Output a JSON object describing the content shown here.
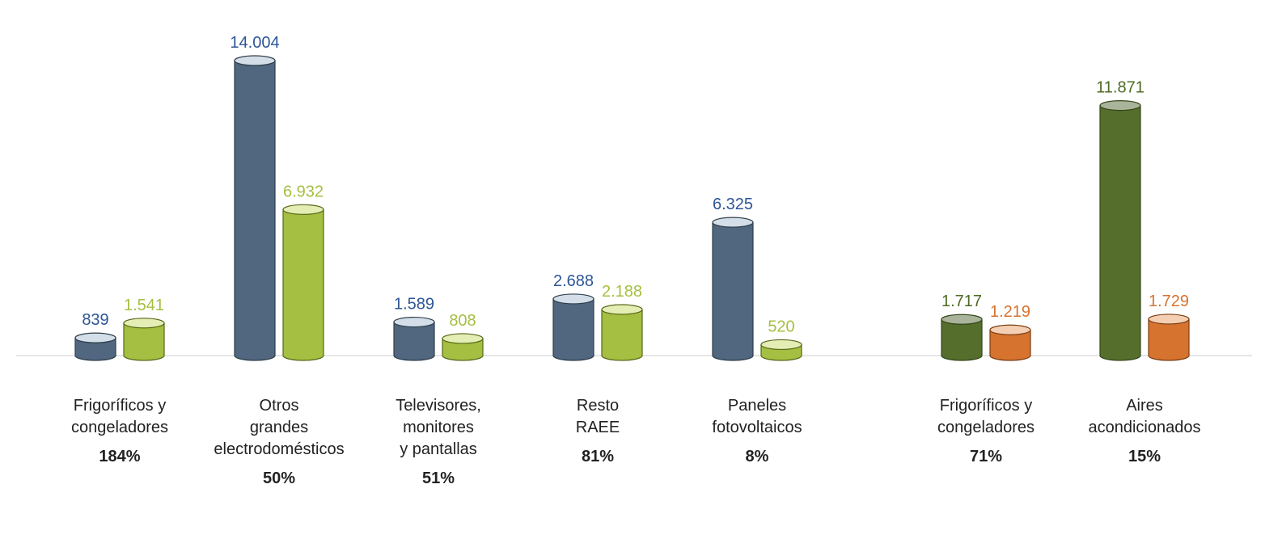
{
  "chart_data": {
    "type": "bar",
    "groups": [
      {
        "label_lines": [
          "Frigoríficos y",
          "congeladores"
        ],
        "percent": "184%",
        "bars": [
          {
            "value": 839,
            "label": "839",
            "color": "blue"
          },
          {
            "value": 1541,
            "label": "1.541",
            "color": "lime"
          }
        ]
      },
      {
        "label_lines": [
          "Otros",
          "grandes",
          "electrodomésticos"
        ],
        "percent": "50%",
        "bars": [
          {
            "value": 14004,
            "label": "14.004",
            "color": "blue"
          },
          {
            "value": 6932,
            "label": "6.932",
            "color": "lime"
          }
        ]
      },
      {
        "label_lines": [
          "Televisores,",
          "monitores",
          "y pantallas"
        ],
        "percent": "51%",
        "bars": [
          {
            "value": 1589,
            "label": "1.589",
            "color": "blue"
          },
          {
            "value": 808,
            "label": "808",
            "color": "lime"
          }
        ]
      },
      {
        "label_lines": [
          "Resto",
          "RAEE"
        ],
        "percent": "81%",
        "bars": [
          {
            "value": 2688,
            "label": "2.688",
            "color": "blue"
          },
          {
            "value": 2188,
            "label": "2.188",
            "color": "lime"
          }
        ]
      },
      {
        "label_lines": [
          "Paneles",
          "fotovoltaicos"
        ],
        "percent": "8%",
        "bars": [
          {
            "value": 6325,
            "label": "6.325",
            "color": "blue"
          },
          {
            "value": 520,
            "label": "520",
            "color": "lime"
          }
        ]
      },
      {
        "label_lines": [
          "Frigoríficos y",
          "congeladores"
        ],
        "percent": "71%",
        "bars": [
          {
            "value": 1717,
            "label": "1.717",
            "color": "olive"
          },
          {
            "value": 1219,
            "label": "1.219",
            "color": "orange"
          }
        ]
      },
      {
        "label_lines": [
          "Aires",
          "acondicionados"
        ],
        "percent": "15%",
        "bars": [
          {
            "value": 11871,
            "label": "11.871",
            "color": "olive"
          },
          {
            "value": 1729,
            "label": "1.729",
            "color": "orange"
          }
        ]
      }
    ],
    "ylim": [
      0,
      14004
    ],
    "title": "",
    "xlabel": "",
    "ylabel": "",
    "grid": false,
    "legend": "none"
  },
  "colors": {
    "blue": {
      "body": "#50677f",
      "top": "#d3dee8",
      "stroke": "#2f3e4c",
      "text": "#2e5597"
    },
    "lime": {
      "body": "#a4bf41",
      "top": "#e4edb3",
      "stroke": "#56681a",
      "text": "#a4bf41"
    },
    "olive": {
      "body": "#556e2c",
      "top": "#aab49a",
      "stroke": "#34461a",
      "text": "#4d6a24"
    },
    "orange": {
      "body": "#d6732f",
      "top": "#f4cfb3",
      "stroke": "#7a3d12",
      "text": "#d6732f"
    },
    "baseline": "#e6e6e6"
  }
}
